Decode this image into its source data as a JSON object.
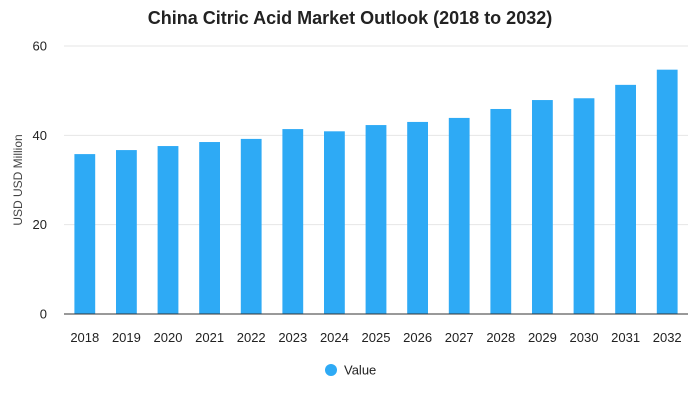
{
  "chart_data": {
    "type": "bar",
    "title": "China Citric Acid Market Outlook (2018 to 2032)",
    "xlabel": "",
    "ylabel": "USD USD Million",
    "ylim": [
      0,
      60
    ],
    "yticks": [
      0,
      20,
      40,
      60
    ],
    "categories": [
      "2018",
      "2019",
      "2020",
      "2021",
      "2022",
      "2023",
      "2024",
      "2025",
      "2026",
      "2027",
      "2028",
      "2029",
      "2030",
      "2031",
      "2032"
    ],
    "series": [
      {
        "name": "Value",
        "color": "#2eaaf5",
        "values": [
          35.8,
          36.7,
          37.6,
          38.5,
          39.2,
          41.4,
          40.9,
          42.3,
          43.0,
          43.9,
          45.9,
          47.9,
          48.3,
          51.3,
          54.7
        ]
      }
    ],
    "grid": true,
    "legend_position": "bottom-center"
  }
}
